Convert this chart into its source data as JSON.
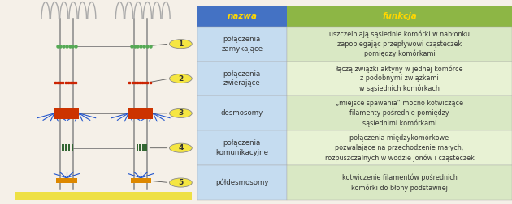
{
  "fig_width": 6.3,
  "fig_height": 2.52,
  "dpi": 100,
  "table": {
    "header_nazwa": "nazwa",
    "header_funkcja": "funkcja",
    "header_bg_nazwa": "#4472C4",
    "header_bg_funkcja": "#8DB645",
    "header_text_color": "#FFD700",
    "col1_bg": "#C5DCF0",
    "col2_bg_even": "#D9E8C4",
    "col2_bg_odd": "#E8F2D4",
    "rows": [
      {
        "nazwa": "połączenia\nzamykające",
        "funkcja": "uszczelniają sąsiednie komórki w nabłonku\nzapobiegając przepływowi cząsteczek\npomiędzy komórkami",
        "label": "1"
      },
      {
        "nazwa": "połączenia\nzwierające",
        "funkcja": "łączą związki aktyny w jednej komórce\nz podobnymi związkami\nw sąsiednich komórkach",
        "label": "2"
      },
      {
        "nazwa": "desmosomy",
        "funkcja": "„miejsce spawania” mocno kotwiczące\nfilamenty pośrednie pomiędzy\nsąsiednimi komórkami",
        "label": "3"
      },
      {
        "nazwa": "połączenia\nkomunikacyjne",
        "funkcja": "połączenia międzykomórkowe\npozwalające na przechodzenie małych,\nrozpuszczalnych w wodzie jonów i cząsteczek",
        "label": "4"
      },
      {
        "nazwa": "półdesmosomy",
        "funkcja": "kotwiczenie filamentów pośrednich\nkomórki do błony podstawnej",
        "label": "5"
      }
    ]
  },
  "left_panel_bg": "#F5F0E8",
  "label_circle_color": "#F5E642",
  "label_circle_edge": "#888888",
  "label_text_color": "#333333"
}
